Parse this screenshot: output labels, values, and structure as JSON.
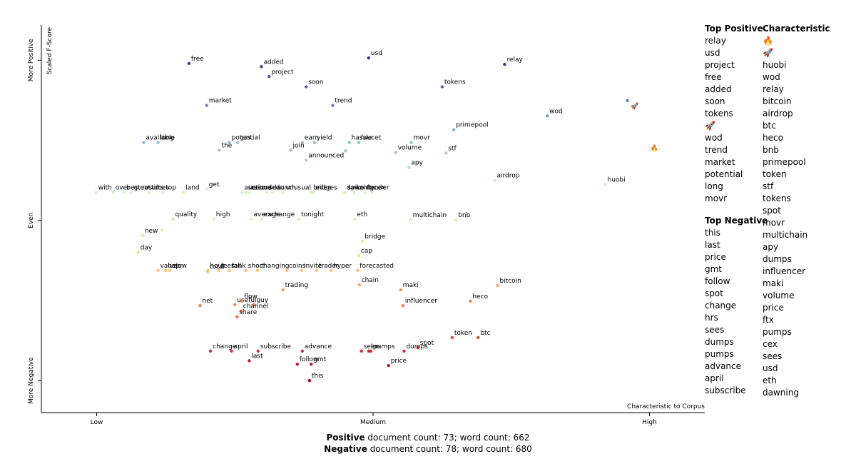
{
  "chart_data": {
    "type": "scatter",
    "x_label": "Characteristic to Corpus",
    "y_label": "Scaled F-Score",
    "xlim": [
      -0.1,
      1.1
    ],
    "ylim": [
      -0.1,
      1.11
    ],
    "xticks": [
      {
        "value": 0,
        "label": "Low"
      },
      {
        "value": 0.5,
        "label": "Medium"
      },
      {
        "value": 1,
        "label": "High"
      }
    ],
    "yticks": [
      {
        "value": 0,
        "label": "More Negative"
      },
      {
        "value": 0.5,
        "label": "Even"
      },
      {
        "value": 1,
        "label": "More Positive"
      }
    ],
    "color_scale": [
      "#a50026",
      "#f46d43",
      "#fee08b",
      "#d9f0d3",
      "#74add1",
      "#313695"
    ],
    "points": [
      {
        "word": "free",
        "x": 0.167,
        "y": 0.99
      },
      {
        "word": "added",
        "x": 0.298,
        "y": 0.98
      },
      {
        "word": "project",
        "x": 0.312,
        "y": 0.949
      },
      {
        "word": "usd",
        "x": 0.492,
        "y": 1.007
      },
      {
        "word": "relay",
        "x": 0.738,
        "y": 0.987
      },
      {
        "word": "soon",
        "x": 0.379,
        "y": 0.917
      },
      {
        "word": "tokens",
        "x": 0.625,
        "y": 0.917
      },
      {
        "word": "market",
        "x": 0.199,
        "y": 0.859
      },
      {
        "word": "trend",
        "x": 0.427,
        "y": 0.859
      },
      {
        "word": "wod",
        "x": 0.815,
        "y": 0.826
      },
      {
        "word": "potential",
        "x": 0.24,
        "y": 0.743
      },
      {
        "word": "gas",
        "x": 0.255,
        "y": 0.743
      },
      {
        "word": "available",
        "x": 0.085,
        "y": 0.743
      },
      {
        "word": "long",
        "x": 0.111,
        "y": 0.743
      },
      {
        "word": "the",
        "x": 0.222,
        "y": 0.719
      },
      {
        "word": "earn",
        "x": 0.372,
        "y": 0.743
      },
      {
        "word": "join",
        "x": 0.351,
        "y": 0.719
      },
      {
        "word": "yield",
        "x": 0.394,
        "y": 0.743
      },
      {
        "word": "hassle",
        "x": 0.457,
        "y": 0.743
      },
      {
        "word": "faucet",
        "x": 0.474,
        "y": 0.743
      },
      {
        "word": "movr",
        "x": 0.569,
        "y": 0.743
      },
      {
        "word": "volume",
        "x": 0.541,
        "y": 0.712
      },
      {
        "word": "primepool",
        "x": 0.646,
        "y": 0.783
      },
      {
        "word": "stf",
        "x": 0.632,
        "y": 0.71
      },
      {
        "word": "announced",
        "x": 0.379,
        "y": 0.688
      },
      {
        "word": "apy",
        "x": 0.565,
        "y": 0.665
      },
      {
        "word": "airdrop",
        "x": 0.72,
        "y": 0.625
      },
      {
        "word": "huobi",
        "x": 0.92,
        "y": 0.612
      },
      {
        "word": "with",
        "x": -0.001,
        "y": 0.587
      },
      {
        "word": "best results",
        "x": 0.05,
        "y": 0.587
      },
      {
        "word": "over",
        "x": 0.03,
        "y": 0.587
      },
      {
        "word": "great",
        "x": 0.063,
        "y": 0.587
      },
      {
        "word": "times",
        "x": 0.095,
        "y": 0.587
      },
      {
        "word": "top",
        "x": 0.121,
        "y": 0.587
      },
      {
        "word": "land",
        "x": 0.157,
        "y": 0.587
      },
      {
        "word": "get",
        "x": 0.199,
        "y": 0.598
      },
      {
        "word": "auctions",
        "x": 0.263,
        "y": 0.587
      },
      {
        "word": "serious",
        "x": 0.27,
        "y": 0.587
      },
      {
        "word": "recorded",
        "x": 0.276,
        "y": 0.587
      },
      {
        "word": "scan",
        "x": 0.308,
        "y": 0.587
      },
      {
        "word": "launch",
        "x": 0.318,
        "y": 0.587
      },
      {
        "word": "unusual",
        "x": 0.338,
        "y": 0.587
      },
      {
        "word": "eden",
        "x": 0.392,
        "y": 0.587
      },
      {
        "word": "bridges",
        "x": 0.388,
        "y": 0.587
      },
      {
        "word": "dawning",
        "x": 0.448,
        "y": 0.587
      },
      {
        "word": "spike",
        "x": 0.45,
        "y": 0.587
      },
      {
        "word": "ftx",
        "x": 0.485,
        "y": 0.587
      },
      {
        "word": "contender",
        "x": 0.466,
        "y": 0.587
      },
      {
        "word": "cex",
        "x": 0.498,
        "y": 0.587
      },
      {
        "word": "quality",
        "x": 0.138,
        "y": 0.504
      },
      {
        "word": "high",
        "x": 0.212,
        "y": 0.504
      },
      {
        "word": "average",
        "x": 0.28,
        "y": 0.504
      },
      {
        "word": "exchange",
        "x": 0.298,
        "y": 0.504
      },
      {
        "word": "tonight",
        "x": 0.366,
        "y": 0.504
      },
      {
        "word": "eth",
        "x": 0.467,
        "y": 0.504
      },
      {
        "word": "multichain",
        "x": 0.568,
        "y": 0.502
      },
      {
        "word": "bnb",
        "x": 0.65,
        "y": 0.502
      },
      {
        "word": "new",
        "x": 0.083,
        "y": 0.453
      },
      {
        "word": "bridge",
        "x": 0.481,
        "y": 0.435
      },
      {
        "word": "day",
        "x": 0.075,
        "y": 0.4
      },
      {
        "word": "cap",
        "x": 0.474,
        "y": 0.39
      },
      {
        "word": "value",
        "x": 0.111,
        "y": 0.344
      },
      {
        "word": "apr",
        "x": 0.132,
        "y": 0.344
      },
      {
        "word": "below",
        "x": 0.125,
        "y": 0.344
      },
      {
        "word": "hour",
        "x": 0.201,
        "y": 0.344
      },
      {
        "word": "fees",
        "x": 0.221,
        "y": 0.344
      },
      {
        "word": "rank",
        "x": 0.24,
        "y": 0.344
      },
      {
        "word": "total",
        "x": 0.201,
        "y": 0.34
      },
      {
        "word": "fall",
        "x": 0.24,
        "y": 0.344
      },
      {
        "word": "short",
        "x": 0.27,
        "y": 0.344
      },
      {
        "word": "changing",
        "x": 0.291,
        "y": 0.344
      },
      {
        "word": "coins",
        "x": 0.344,
        "y": 0.344
      },
      {
        "word": "trader",
        "x": 0.398,
        "y": 0.344
      },
      {
        "word": "invite",
        "x": 0.371,
        "y": 0.344
      },
      {
        "word": "hyper",
        "x": 0.424,
        "y": 0.344
      },
      {
        "word": "forecasted",
        "x": 0.472,
        "y": 0.344
      },
      {
        "word": "chain",
        "x": 0.475,
        "y": 0.299
      },
      {
        "word": "trading",
        "x": 0.337,
        "y": 0.283
      },
      {
        "word": "maki",
        "x": 0.55,
        "y": 0.283
      },
      {
        "word": "bitcoin",
        "x": 0.725,
        "y": 0.297
      },
      {
        "word": "useful",
        "x": 0.25,
        "y": 0.237
      },
      {
        "word": "flow",
        "x": 0.263,
        "y": 0.248
      },
      {
        "word": "guy",
        "x": 0.285,
        "y": 0.237
      },
      {
        "word": "net",
        "x": 0.187,
        "y": 0.234
      },
      {
        "word": "channel",
        "x": 0.261,
        "y": 0.217
      },
      {
        "word": "share",
        "x": 0.254,
        "y": 0.199
      },
      {
        "word": "influencer",
        "x": 0.554,
        "y": 0.234
      },
      {
        "word": "heco",
        "x": 0.676,
        "y": 0.248
      },
      {
        "word": "token",
        "x": 0.643,
        "y": 0.134
      },
      {
        "word": "btc",
        "x": 0.69,
        "y": 0.134
      },
      {
        "word": "sees",
        "x": 0.479,
        "y": 0.092
      },
      {
        "word": "pumps",
        "x": 0.496,
        "y": 0.092
      },
      {
        "word": "hrs",
        "x": 0.492,
        "y": 0.092
      },
      {
        "word": "spot",
        "x": 0.581,
        "y": 0.103
      },
      {
        "word": "dumps",
        "x": 0.556,
        "y": 0.092
      },
      {
        "word": "price",
        "x": 0.528,
        "y": 0.047
      },
      {
        "word": "april",
        "x": 0.244,
        "y": 0.092
      },
      {
        "word": "change",
        "x": 0.206,
        "y": 0.092
      },
      {
        "word": "last",
        "x": 0.276,
        "y": 0.062
      },
      {
        "word": "subscribe",
        "x": 0.292,
        "y": 0.092
      },
      {
        "word": "advance",
        "x": 0.372,
        "y": 0.092
      },
      {
        "word": "follow",
        "x": 0.363,
        "y": 0.051
      },
      {
        "word": "gmt",
        "x": 0.388,
        "y": 0.051
      },
      {
        "word": "this",
        "x": 0.385,
        "y": 0.0
      },
      {
        "word": "🔥",
        "x": 1.009,
        "y": 0.728
      },
      {
        "word": "🚀",
        "x": 0.973,
        "y": 0.859
      },
      {
        "word": null,
        "x": 0.96,
        "y": 0.874
      },
      {
        "word": null,
        "x": 0.45,
        "y": 0.717
      },
      {
        "word": null,
        "x": 0.03,
        "y": 0.59
      },
      {
        "word": null,
        "x": 0.118,
        "y": 0.47
      }
    ]
  },
  "top_positive": {
    "title": "Top Positive",
    "items": [
      "relay",
      "usd",
      "project",
      "free",
      "added",
      "soon",
      "tokens",
      "🚀",
      "wod",
      "trend",
      "market",
      "potential",
      "long",
      "movr"
    ]
  },
  "top_negative": {
    "title": "Top Negative",
    "items": [
      "this",
      "last",
      "price",
      "gmt",
      "follow",
      "spot",
      "change",
      "hrs",
      "sees",
      "dumps",
      "pumps",
      "advance",
      "april",
      "subscribe"
    ]
  },
  "characteristic": {
    "title": "Characteristic",
    "items": [
      "🔥",
      "🚀",
      "huobi",
      "wod",
      "relay",
      "bitcoin",
      "airdrop",
      "btc",
      "heco",
      "bnb",
      "primepool",
      "token",
      "stf",
      "tokens",
      "spot",
      "movr",
      "multichain",
      "apy",
      "dumps",
      "influencer",
      "maki",
      "volume",
      "price",
      "ftx",
      "pumps",
      "cex",
      "sees",
      "usd",
      "eth",
      "dawning"
    ]
  },
  "summary": {
    "positive_label": "Positive",
    "positive_text": "document count: 73; word count: 662",
    "negative_label": "Negative",
    "negative_text": "document count: 78; word count: 680"
  }
}
